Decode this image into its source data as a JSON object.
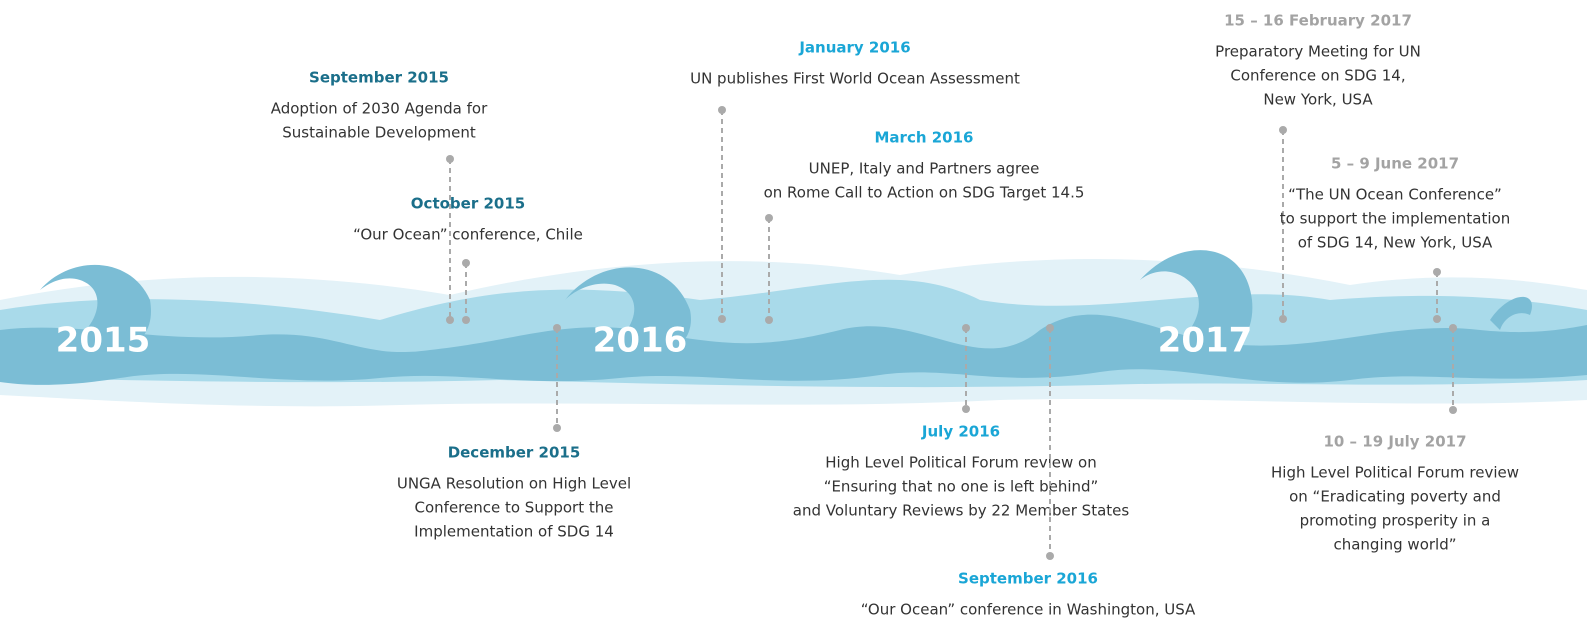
{
  "years": [
    "2015",
    "2016",
    "2017"
  ],
  "events": [
    {
      "date": "September 2015",
      "lines": [
        "Adoption of 2030 Agenda for",
        "Sustainable Development"
      ]
    },
    {
      "date": "October 2015",
      "lines": [
        "“Our Ocean” conference, Chile"
      ]
    },
    {
      "date": "December 2015",
      "lines": [
        "UNGA Resolution on High Level",
        "Conference to Support the",
        "Implementation of SDG 14"
      ]
    },
    {
      "date": "January 2016",
      "lines": [
        "UN publishes First World Ocean Assessment"
      ]
    },
    {
      "date": "March 2016",
      "lines": [
        "UNEP, Italy and Partners agree",
        "on Rome Call to Action on SDG Target 14.5"
      ]
    },
    {
      "date": "July 2016",
      "lines": [
        "High Level Political Forum review on",
        "“Ensuring that no one is left behind”",
        "and Voluntary Reviews by 22 Member States"
      ]
    },
    {
      "date": "September 2016",
      "lines": [
        "“Our Ocean” conference in Washington, USA"
      ]
    },
    {
      "date": "15 – 16 February 2017",
      "lines": [
        "Preparatory Meeting for UN",
        "Conference on SDG 14,",
        "New York, USA"
      ]
    },
    {
      "date": "5 – 9 June 2017",
      "lines": [
        "“The UN Ocean Conference”",
        "to support the implementation",
        "of SDG 14, New York, USA"
      ]
    },
    {
      "date": "10 – 19 July 2017",
      "lines": [
        "High Level Political Forum review",
        "on “Eradicating poverty and",
        "promoting prosperity in a",
        "changing world”"
      ]
    }
  ]
}
